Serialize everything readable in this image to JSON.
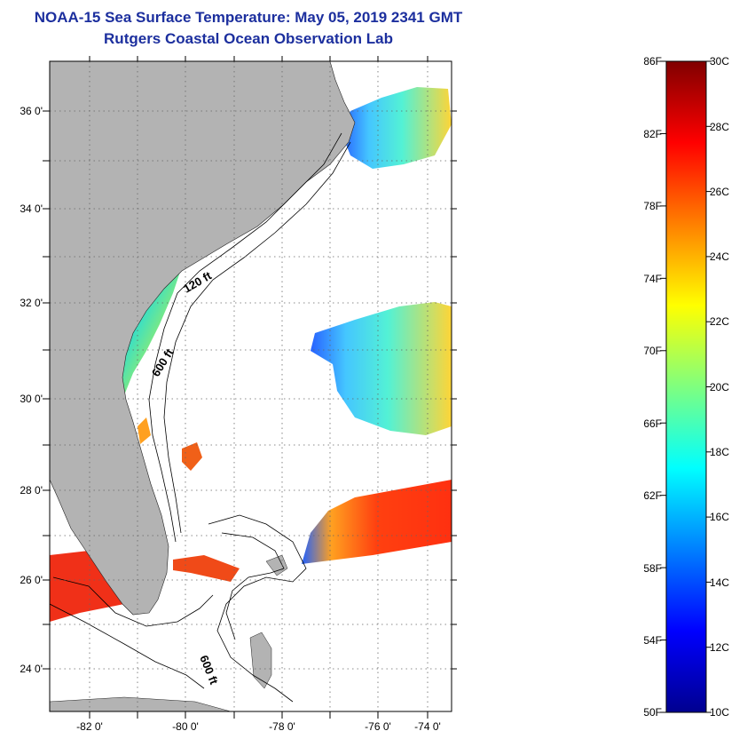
{
  "title_line1": "NOAA-15 Sea Surface Temperature:  May 05, 2019 2341 GMT",
  "title_line2": "Rutgers Coastal Ocean Observation Lab",
  "map": {
    "lon_ticks": [
      "-82 0'",
      "-80 0'",
      "-78 0'",
      "-76 0'",
      "-74 0'"
    ],
    "lat_ticks": [
      "36 0'",
      "34 0'",
      "32 0'",
      "30 0'",
      "28 0'",
      "26 0'",
      "24 0'"
    ],
    "contour_labels": [
      "120 ft",
      "600 ft",
      "600 ft"
    ],
    "land_color": "#b3b3b3"
  },
  "colorbar": {
    "fahrenheit_labels": [
      "86F",
      "82F",
      "78F",
      "74F",
      "70F",
      "66F",
      "62F",
      "58F",
      "54F",
      "50F"
    ],
    "celsius_labels": [
      "30C",
      "28C",
      "26C",
      "24C",
      "22C",
      "20C",
      "18C",
      "16C",
      "14C",
      "12C",
      "10C"
    ],
    "range_f": [
      50,
      86
    ],
    "range_c": [
      10,
      30
    ]
  }
}
